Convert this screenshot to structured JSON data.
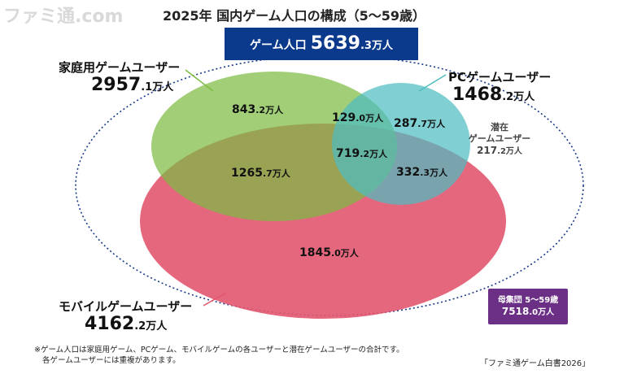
{
  "watermark": "ファミ通.com",
  "title": "2025年 国内ゲーム人口の構成（5〜59歳）",
  "total": {
    "label": "ゲーム人口",
    "value_main": "5639",
    "value_rest": ".3万人"
  },
  "groups": {
    "console": {
      "name": "家庭用ゲームユーザー",
      "value_main": "2957",
      "value_rest": ".1万人"
    },
    "pc": {
      "name": "PCゲームユーザー",
      "value_main": "1468",
      "value_rest": ".2万人"
    },
    "mobile": {
      "name": "モバイルゲームユーザー",
      "value_main": "4162",
      "value_rest": ".2万人"
    }
  },
  "regions": {
    "console_only": {
      "main": "843",
      "rest": ".2万人"
    },
    "console_pc": {
      "main": "129",
      "rest": ".0万人"
    },
    "pc_only": {
      "main": "287",
      "rest": ".7万人"
    },
    "all_three": {
      "main": "719",
      "rest": ".2万人"
    },
    "console_mobile": {
      "main": "1265",
      "rest": ".7万人"
    },
    "pc_mobile": {
      "main": "332",
      "rest": ".3万人"
    },
    "mobile_only": {
      "main": "1845",
      "rest": ".0万人"
    }
  },
  "latent": {
    "line1": "潜在",
    "line2": "ゲームユーザー",
    "main": "217",
    "rest": ".2万人"
  },
  "population": {
    "label": "母集団 5〜59歳",
    "main": "7518",
    "rest": ".0万人"
  },
  "notes": [
    "※ゲーム人口は家庭用ゲーム、PCゲーム、モバイルゲームの各ユーザーと潜在ゲームユーザーの合計です。",
    "各ゲームユーザーには重複があります。"
  ],
  "source": "「ファミ通ゲーム白書2026」",
  "colors": {
    "console": "#7dbb42",
    "pc": "#4fbcc0",
    "mobile": "#e2566f",
    "total_box": "#0b3a8c",
    "population_box": "#6b2f86",
    "outline": "#1a3a8a"
  }
}
